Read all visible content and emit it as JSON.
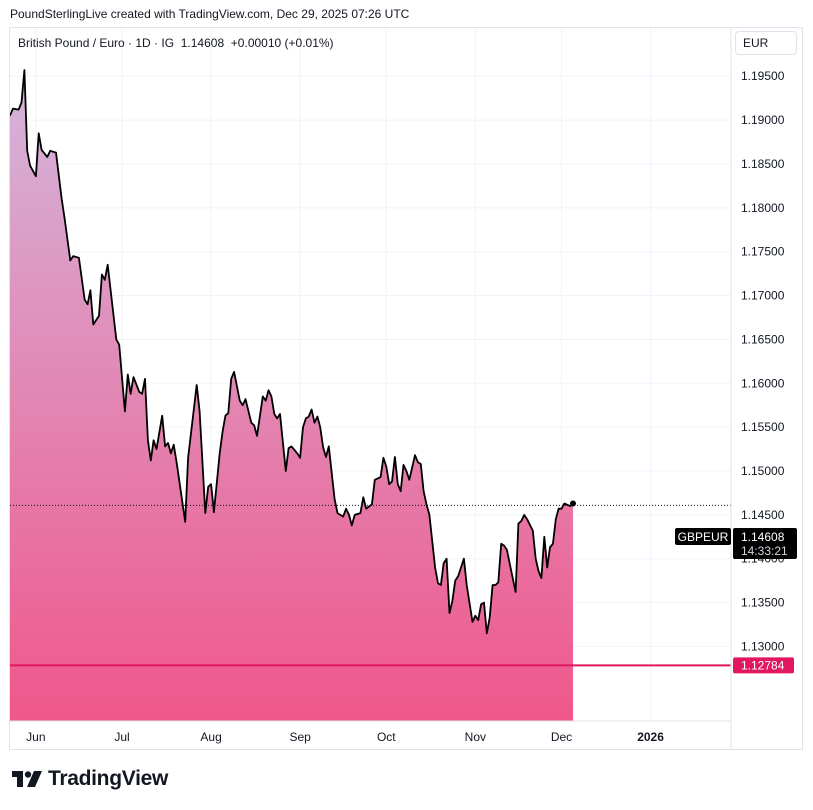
{
  "caption": "PoundSterlingLive created with TradingView.com, Dec 29, 2025 07:26 UTC",
  "legend": {
    "symbol": "British Pound / Euro · 1D · IG",
    "price": "1.14608",
    "change": "+0.00010 (+0.01%)"
  },
  "currency": "EUR",
  "brand": "TradingView",
  "colors": {
    "line": "#000000",
    "area_top": "#d4b6dc",
    "area_bottom": "#f0578b",
    "support_line": "#e3175f",
    "price_label_bg": "#000000",
    "support_label_bg": "#e3175f"
  },
  "chart_data": {
    "type": "area",
    "symbol_label": "GBPEUR",
    "last_price": "1.14608",
    "countdown": "14:33:21",
    "support_level": 1.12784,
    "support_label": "1.12784",
    "ylim": [
      1.1215,
      1.2005
    ],
    "y_ticks": [
      "1.13000",
      "1.13500",
      "1.14000",
      "1.14500",
      "1.15000",
      "1.15500",
      "1.16000",
      "1.16500",
      "1.17000",
      "1.17500",
      "1.18000",
      "1.18500",
      "1.19000",
      "1.19500"
    ],
    "x_ticks": [
      {
        "label": "Jun",
        "date": "2025-06-01",
        "bold": false
      },
      {
        "label": "Jul",
        "date": "2025-07-01",
        "bold": false
      },
      {
        "label": "Aug",
        "date": "2025-08-01",
        "bold": false
      },
      {
        "label": "Sep",
        "date": "2025-09-01",
        "bold": false
      },
      {
        "label": "Oct",
        "date": "2025-10-01",
        "bold": false
      },
      {
        "label": "Nov",
        "date": "2025-11-01",
        "bold": false
      },
      {
        "label": "Dec",
        "date": "2025-12-01",
        "bold": false
      },
      {
        "label": "2026",
        "date": "2026-01-01",
        "bold": true
      }
    ],
    "xlim": [
      "2025-05-23",
      "2026-01-29"
    ],
    "series": [
      {
        "points": [
          [
            "2025-05-23",
            1.1905
          ],
          [
            "2025-05-24",
            1.1913
          ],
          [
            "2025-05-26",
            1.1912
          ],
          [
            "2025-05-27",
            1.192
          ],
          [
            "2025-05-28",
            1.1957
          ],
          [
            "2025-05-29",
            1.1865
          ],
          [
            "2025-05-30",
            1.1848
          ],
          [
            "2025-06-01",
            1.1836
          ],
          [
            "2025-06-02",
            1.1885
          ],
          [
            "2025-06-03",
            1.1866
          ],
          [
            "2025-06-05",
            1.1858
          ],
          [
            "2025-06-06",
            1.1865
          ],
          [
            "2025-06-08",
            1.1863
          ],
          [
            "2025-06-10",
            1.181
          ],
          [
            "2025-06-11",
            1.1788
          ],
          [
            "2025-06-13",
            1.174
          ],
          [
            "2025-06-14",
            1.1745
          ],
          [
            "2025-06-16",
            1.1743
          ],
          [
            "2025-06-18",
            1.1695
          ],
          [
            "2025-06-19",
            1.169
          ],
          [
            "2025-06-20",
            1.1706
          ],
          [
            "2025-06-21",
            1.1667
          ],
          [
            "2025-06-23",
            1.1677
          ],
          [
            "2025-06-24",
            1.1724
          ],
          [
            "2025-06-25",
            1.1718
          ],
          [
            "2025-06-26",
            1.1735
          ],
          [
            "2025-06-29",
            1.165
          ],
          [
            "2025-06-30",
            1.1644
          ],
          [
            "2025-07-02",
            1.1568
          ],
          [
            "2025-07-03",
            1.161
          ],
          [
            "2025-07-04",
            1.1588
          ],
          [
            "2025-07-05",
            1.1607
          ],
          [
            "2025-07-07",
            1.159
          ],
          [
            "2025-07-08",
            1.1588
          ],
          [
            "2025-07-09",
            1.1605
          ],
          [
            "2025-07-10",
            1.1535
          ],
          [
            "2025-07-11",
            1.1512
          ],
          [
            "2025-07-12",
            1.1535
          ],
          [
            "2025-07-13",
            1.1525
          ],
          [
            "2025-07-15",
            1.1563
          ],
          [
            "2025-07-16",
            1.1528
          ],
          [
            "2025-07-17",
            1.1532
          ],
          [
            "2025-07-18",
            1.152
          ],
          [
            "2025-07-19",
            1.153
          ],
          [
            "2025-07-20",
            1.151
          ],
          [
            "2025-07-23",
            1.1442
          ],
          [
            "2025-07-24",
            1.1515
          ],
          [
            "2025-07-27",
            1.1598
          ],
          [
            "2025-07-28",
            1.1568
          ],
          [
            "2025-07-30",
            1.1452
          ],
          [
            "2025-07-31",
            1.1482
          ],
          [
            "2025-08-01",
            1.1485
          ],
          [
            "2025-08-02",
            1.1453
          ],
          [
            "2025-08-04",
            1.152
          ],
          [
            "2025-08-05",
            1.1545
          ],
          [
            "2025-08-06",
            1.1563
          ],
          [
            "2025-08-07",
            1.1566
          ],
          [
            "2025-08-08",
            1.1605
          ],
          [
            "2025-08-09",
            1.1613
          ],
          [
            "2025-08-11",
            1.158
          ],
          [
            "2025-08-12",
            1.1575
          ],
          [
            "2025-08-13",
            1.1582
          ],
          [
            "2025-08-15",
            1.1555
          ],
          [
            "2025-08-16",
            1.1552
          ],
          [
            "2025-08-17",
            1.154
          ],
          [
            "2025-08-19",
            1.1585
          ],
          [
            "2025-08-20",
            1.158
          ],
          [
            "2025-08-21",
            1.1592
          ],
          [
            "2025-08-22",
            1.1585
          ],
          [
            "2025-08-23",
            1.1565
          ],
          [
            "2025-08-24",
            1.156
          ],
          [
            "2025-08-25",
            1.1565
          ],
          [
            "2025-08-27",
            1.15
          ],
          [
            "2025-08-28",
            1.1526
          ],
          [
            "2025-08-29",
            1.1528
          ],
          [
            "2025-08-31",
            1.152
          ],
          [
            "2025-09-01",
            1.1515
          ],
          [
            "2025-09-02",
            1.155
          ],
          [
            "2025-09-03",
            1.156
          ],
          [
            "2025-09-04",
            1.1562
          ],
          [
            "2025-09-05",
            1.157
          ],
          [
            "2025-09-06",
            1.1555
          ],
          [
            "2025-09-07",
            1.1562
          ],
          [
            "2025-09-08",
            1.155
          ],
          [
            "2025-09-09",
            1.1527
          ],
          [
            "2025-09-10",
            1.1516
          ],
          [
            "2025-09-11",
            1.1528
          ],
          [
            "2025-09-13",
            1.1468
          ],
          [
            "2025-09-14",
            1.1452
          ],
          [
            "2025-09-16",
            1.1448
          ],
          [
            "2025-09-17",
            1.1457
          ],
          [
            "2025-09-18",
            1.145
          ],
          [
            "2025-09-19",
            1.1438
          ],
          [
            "2025-09-20",
            1.145
          ],
          [
            "2025-09-22",
            1.1452
          ],
          [
            "2025-09-23",
            1.147
          ],
          [
            "2025-09-24",
            1.1457
          ],
          [
            "2025-09-26",
            1.1462
          ],
          [
            "2025-09-27",
            1.149
          ],
          [
            "2025-09-29",
            1.1493
          ],
          [
            "2025-09-30",
            1.1515
          ],
          [
            "2025-10-01",
            1.1505
          ],
          [
            "2025-10-02",
            1.1485
          ],
          [
            "2025-10-03",
            1.1488
          ],
          [
            "2025-10-04",
            1.1516
          ],
          [
            "2025-10-05",
            1.1485
          ],
          [
            "2025-10-06",
            1.1477
          ],
          [
            "2025-10-07",
            1.1507
          ],
          [
            "2025-10-08",
            1.15
          ],
          [
            "2025-10-09",
            1.149
          ],
          [
            "2025-10-11",
            1.1518
          ],
          [
            "2025-10-12",
            1.151
          ],
          [
            "2025-10-13",
            1.1508
          ],
          [
            "2025-10-14",
            1.1477
          ],
          [
            "2025-10-15",
            1.1462
          ],
          [
            "2025-10-16",
            1.145
          ],
          [
            "2025-10-18",
            1.139
          ],
          [
            "2025-10-19",
            1.1372
          ],
          [
            "2025-10-20",
            1.137
          ],
          [
            "2025-10-21",
            1.1395
          ],
          [
            "2025-10-22",
            1.14
          ],
          [
            "2025-10-23",
            1.1338
          ],
          [
            "2025-10-24",
            1.1352
          ],
          [
            "2025-10-25",
            1.1375
          ],
          [
            "2025-10-26",
            1.138
          ],
          [
            "2025-10-28",
            1.14
          ],
          [
            "2025-10-29",
            1.137
          ],
          [
            "2025-10-31",
            1.1328
          ],
          [
            "2025-11-01",
            1.1335
          ],
          [
            "2025-11-02",
            1.133
          ],
          [
            "2025-11-03",
            1.1348
          ],
          [
            "2025-11-04",
            1.135
          ],
          [
            "2025-11-05",
            1.1315
          ],
          [
            "2025-11-06",
            1.1333
          ],
          [
            "2025-11-07",
            1.137
          ],
          [
            "2025-11-08",
            1.137
          ],
          [
            "2025-11-09",
            1.1373
          ],
          [
            "2025-11-10",
            1.1417
          ],
          [
            "2025-11-11",
            1.1415
          ],
          [
            "2025-11-12",
            1.141
          ],
          [
            "2025-11-14",
            1.1378
          ],
          [
            "2025-11-15",
            1.1362
          ],
          [
            "2025-11-16",
            1.144
          ],
          [
            "2025-11-17",
            1.1443
          ],
          [
            "2025-11-18",
            1.145
          ],
          [
            "2025-11-19",
            1.1445
          ],
          [
            "2025-11-21",
            1.1432
          ],
          [
            "2025-11-22",
            1.14
          ],
          [
            "2025-11-23",
            1.1386
          ],
          [
            "2025-11-24",
            1.1378
          ],
          [
            "2025-11-25",
            1.1425
          ],
          [
            "2025-11-26",
            1.139
          ],
          [
            "2025-11-27",
            1.1413
          ],
          [
            "2025-11-28",
            1.1417
          ],
          [
            "2025-11-29",
            1.1445
          ],
          [
            "2025-11-30",
            1.1457
          ],
          [
            "2025-12-01",
            1.1457
          ],
          [
            "2025-12-02",
            1.1463
          ],
          [
            "2025-12-04",
            1.146
          ],
          [
            "2025-12-05",
            1.1463
          ]
        ]
      }
    ]
  }
}
